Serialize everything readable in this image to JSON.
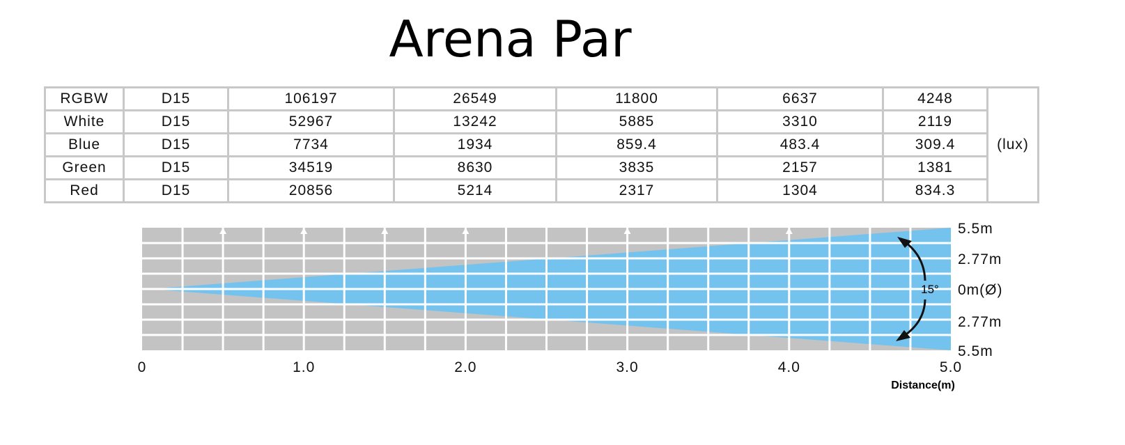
{
  "title": "Arena Par",
  "table": {
    "unit": "(lux)",
    "rows": [
      {
        "color": "RGBW",
        "beam": "D15",
        "values": [
          "106197",
          "26549",
          "11800",
          "6637",
          "4248"
        ]
      },
      {
        "color": "White",
        "beam": "D15",
        "values": [
          "52967",
          "13242",
          "5885",
          "3310",
          "2119"
        ]
      },
      {
        "color": "Blue",
        "beam": "D15",
        "values": [
          "7734",
          "1934",
          "859.4",
          "483.4",
          "309.4"
        ]
      },
      {
        "color": "Green",
        "beam": "D15",
        "values": [
          "34519",
          "8630",
          "3835",
          "2157",
          "1381"
        ]
      },
      {
        "color": "Red",
        "beam": "D15",
        "values": [
          "20856",
          "5214",
          "2317",
          "1304",
          "834.3"
        ]
      }
    ]
  },
  "chart_data": {
    "type": "beam-diagram",
    "beam_angle_label": "15°",
    "beam_angle_deg": 15,
    "xlabel": "Distance(m)",
    "xlim": [
      0,
      5
    ],
    "x_ticks": [
      "0",
      "1.0",
      "2.0",
      "3.0",
      "4.0",
      "5.0"
    ],
    "x_tick_values": [
      0,
      1,
      2,
      3,
      4,
      5
    ],
    "arrow_markers_at": [
      0.5,
      1.0,
      1.5,
      2.0,
      3.0,
      4.0
    ],
    "y_labels": [
      "5.5m",
      "2.77m",
      "0m(Ø)",
      "2.77m",
      "5.5m"
    ],
    "diameter_at_max_m": 5.5,
    "colors": {
      "beam": "#74c3ee",
      "background": "#c3c3c3",
      "grid": "#ffffff"
    }
  }
}
